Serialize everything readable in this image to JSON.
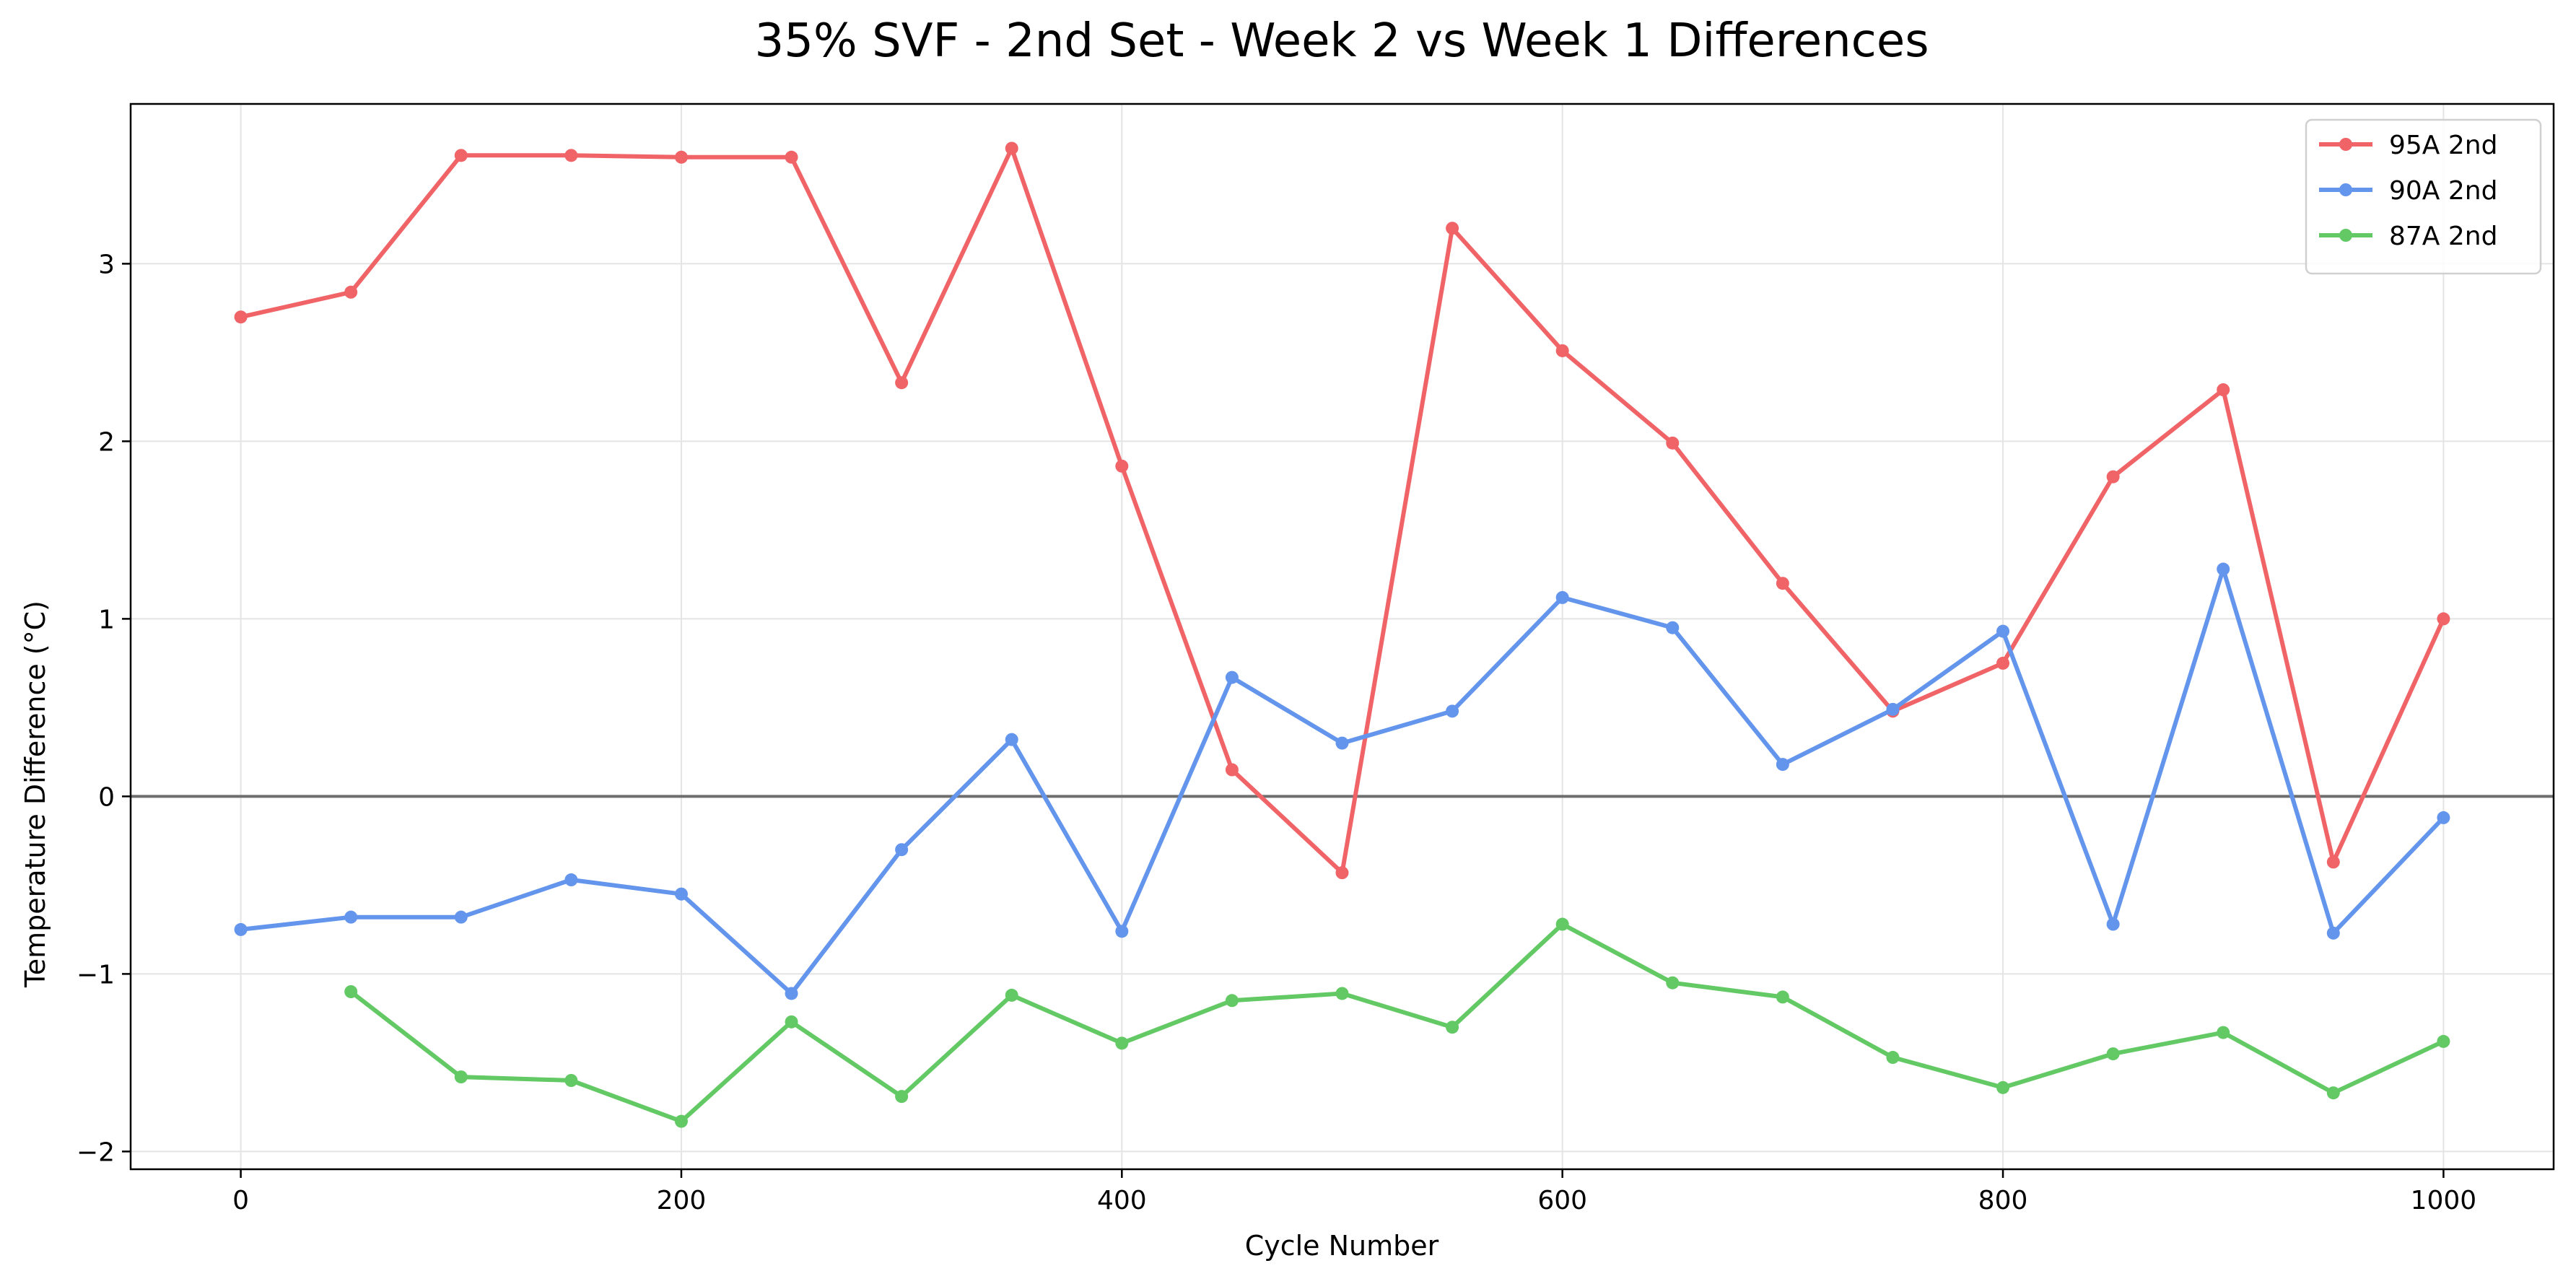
{
  "chart_data": {
    "type": "line",
    "title": "35% SVF - 2nd Set - Week 2 vs Week 1 Differences",
    "xlabel": "Cycle Number",
    "ylabel": "Temperature Difference (°C)",
    "xlim": [
      -50,
      1050
    ],
    "ylim": [
      -2.1,
      3.9
    ],
    "xticks": [
      0,
      200,
      400,
      600,
      800,
      1000
    ],
    "yticks": [
      -2,
      -1,
      0,
      1,
      2,
      3
    ],
    "ytick_labels": [
      "−2",
      "−1",
      "0",
      "1",
      "2",
      "3"
    ],
    "grid": true,
    "zero_line": true,
    "legend_position": "upper right",
    "series": [
      {
        "name": "95A 2nd",
        "color": "#f06468",
        "x": [
          0,
          50,
          100,
          150,
          200,
          250,
          300,
          350,
          400,
          450,
          500,
          550,
          600,
          650,
          700,
          750,
          800,
          850,
          900,
          950,
          1000
        ],
        "y": [
          2.7,
          2.84,
          3.61,
          3.61,
          3.6,
          3.6,
          2.33,
          3.65,
          1.86,
          0.15,
          -0.43,
          3.2,
          2.51,
          1.99,
          1.2,
          0.48,
          0.75,
          1.8,
          2.29,
          -0.37,
          1.0
        ]
      },
      {
        "name": "90A 2nd",
        "color": "#6495ed",
        "x": [
          0,
          50,
          100,
          150,
          200,
          250,
          300,
          350,
          400,
          450,
          500,
          550,
          600,
          650,
          700,
          750,
          800,
          850,
          900,
          950,
          1000
        ],
        "y": [
          -0.75,
          -0.68,
          -0.68,
          -0.47,
          -0.55,
          -1.11,
          -0.3,
          0.32,
          -0.76,
          0.67,
          0.3,
          0.48,
          1.12,
          0.95,
          0.18,
          0.49,
          0.93,
          -0.72,
          1.28,
          -0.77,
          -0.12
        ]
      },
      {
        "name": "87A 2nd",
        "color": "#63c964",
        "x": [
          50,
          100,
          150,
          200,
          250,
          300,
          350,
          400,
          450,
          500,
          550,
          600,
          650,
          700,
          750,
          800,
          850,
          900,
          950,
          1000
        ],
        "y": [
          -1.1,
          -1.58,
          -1.6,
          -1.83,
          -1.27,
          -1.69,
          -1.12,
          -1.39,
          -1.15,
          -1.11,
          -1.3,
          -0.72,
          -1.05,
          -1.13,
          -1.47,
          -1.64,
          -1.45,
          -1.33,
          -1.67,
          -1.38
        ]
      }
    ]
  }
}
